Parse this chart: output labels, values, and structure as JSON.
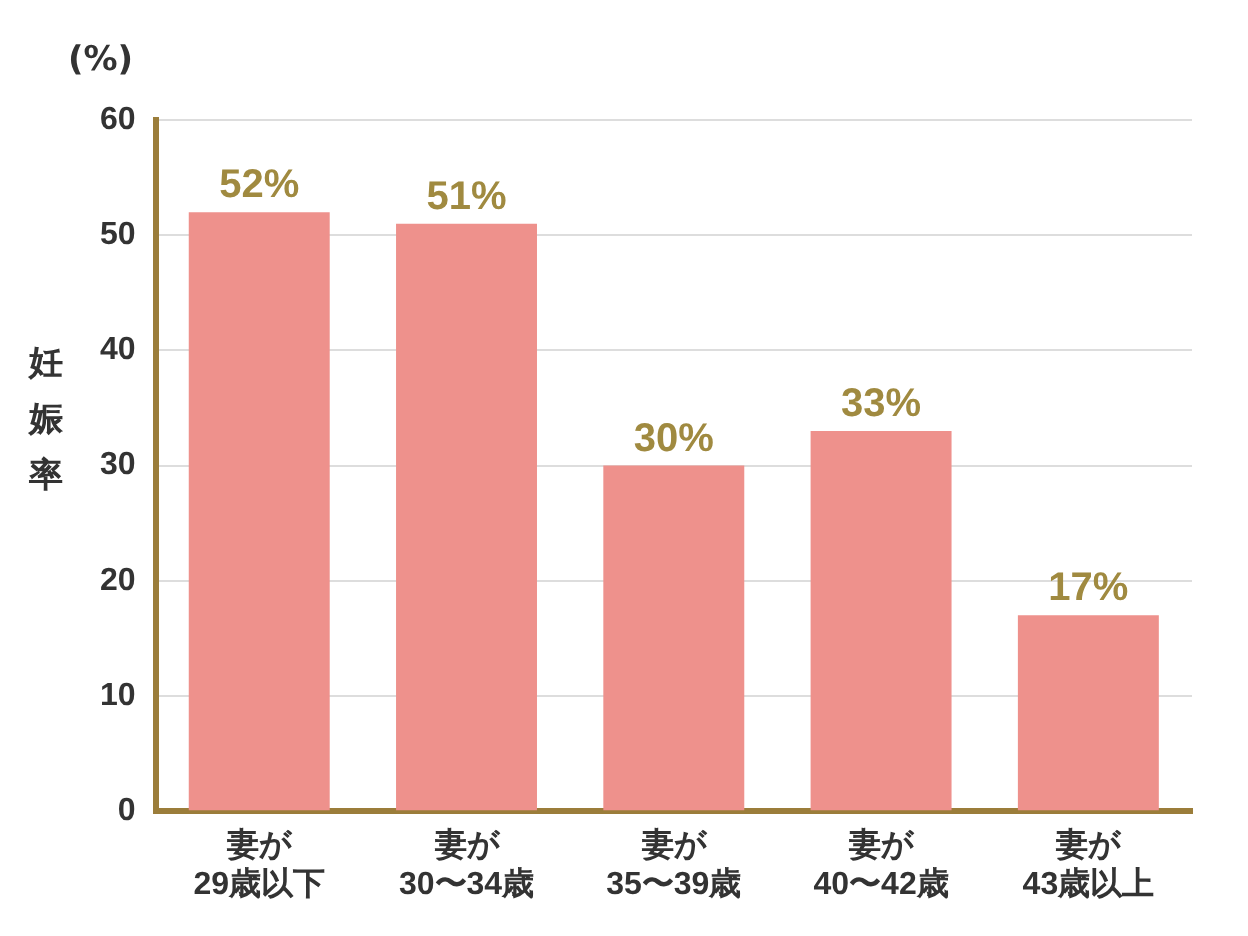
{
  "chart_data": {
    "type": "bar",
    "ylabel": "妊娠率",
    "annotations": [
      "(%)"
    ],
    "categories": [
      "妻が\n29歳以下",
      "妻が\n30〜34歳",
      "妻が\n35〜39歳",
      "妻が\n40〜42歳",
      "妻が\n43歳以上"
    ],
    "values": [
      52,
      51,
      30,
      33,
      17
    ],
    "color": "#ee918c",
    "ylim": [
      0,
      60
    ],
    "yticks": [
      0,
      10,
      20,
      30,
      40,
      50,
      60
    ],
    "value_labels": [
      "52%",
      "51%",
      "30%",
      "33%",
      "17%"
    ],
    "grid": "y",
    "legend": false
  }
}
